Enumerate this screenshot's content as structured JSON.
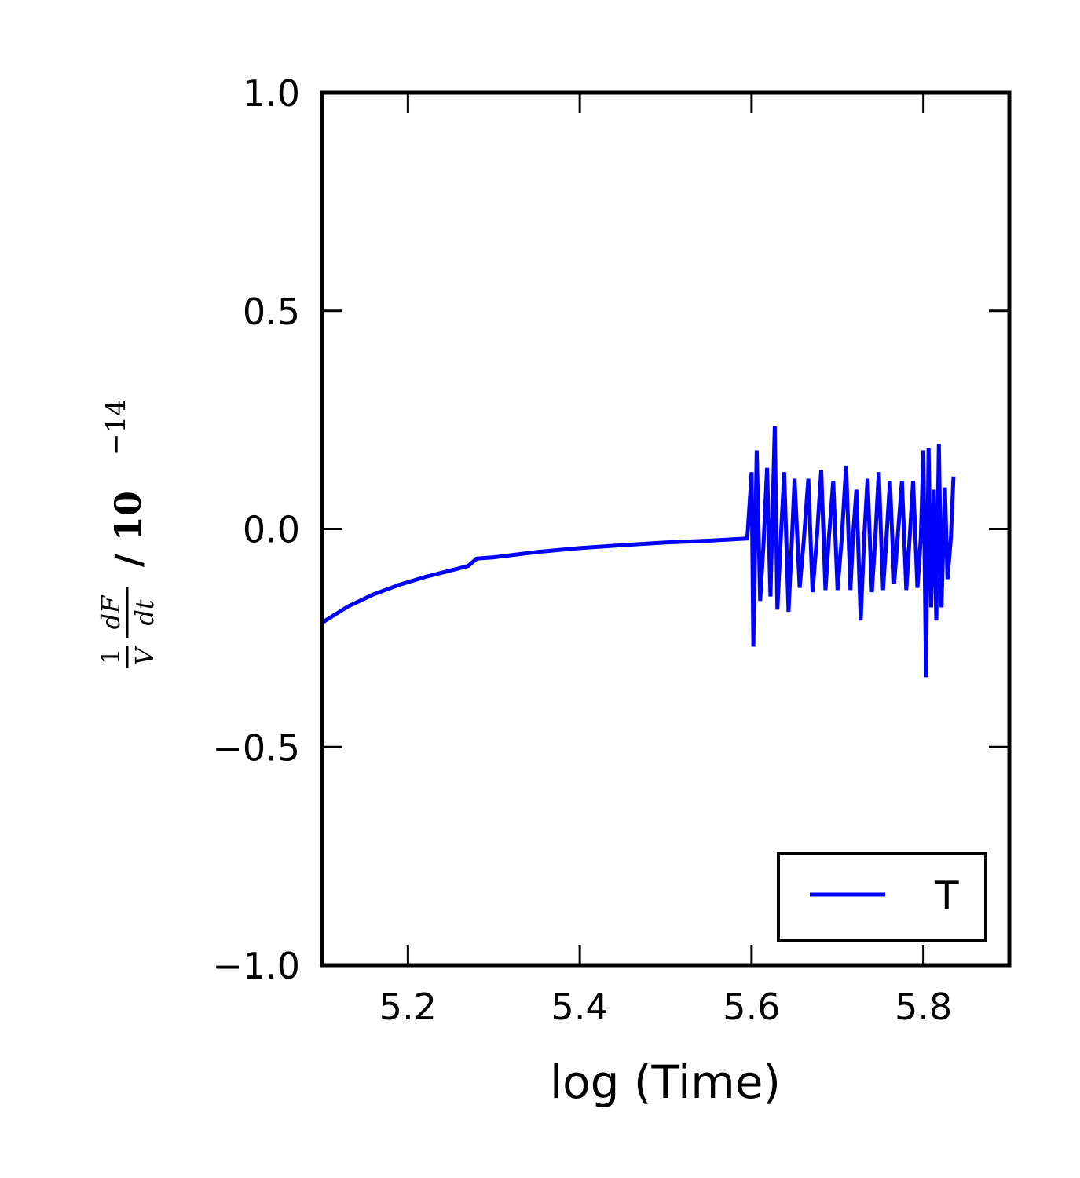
{
  "chart_data": {
    "type": "line",
    "xlabel": "log (Time)",
    "ylabel": {
      "fraction_numerator": "1",
      "fraction_denominator": "V",
      "derivative_numerator": "dF",
      "derivative_denominator": "dt",
      "scale_text": "/ 10",
      "scale_exponent": "−14"
    },
    "xlim": [
      5.1,
      5.9
    ],
    "ylim": [
      -1.0,
      1.0
    ],
    "xticks": [
      {
        "value": 5.2,
        "label": "5.2"
      },
      {
        "value": 5.4,
        "label": "5.4"
      },
      {
        "value": 5.6,
        "label": "5.6"
      },
      {
        "value": 5.8,
        "label": "5.8"
      }
    ],
    "yticks": [
      {
        "value": -1.0,
        "label": "−1.0"
      },
      {
        "value": -0.5,
        "label": "−0.5"
      },
      {
        "value": 0.0,
        "label": "0.0"
      },
      {
        "value": 0.5,
        "label": "0.5"
      },
      {
        "value": 1.0,
        "label": "1.0"
      }
    ],
    "grid": false,
    "legend_position": "lower-right",
    "series": [
      {
        "name": "T",
        "color": "#0000ff",
        "points": [
          [
            5.1,
            -0.215
          ],
          [
            5.13,
            -0.178
          ],
          [
            5.16,
            -0.15
          ],
          [
            5.19,
            -0.128
          ],
          [
            5.22,
            -0.11
          ],
          [
            5.25,
            -0.095
          ],
          [
            5.27,
            -0.085
          ],
          [
            5.28,
            -0.068
          ],
          [
            5.3,
            -0.065
          ],
          [
            5.35,
            -0.053
          ],
          [
            5.4,
            -0.044
          ],
          [
            5.45,
            -0.037
          ],
          [
            5.5,
            -0.031
          ],
          [
            5.55,
            -0.027
          ],
          [
            5.595,
            -0.022
          ],
          [
            5.6,
            0.13
          ],
          [
            5.602,
            -0.27
          ],
          [
            5.606,
            0.18
          ],
          [
            5.61,
            -0.165
          ],
          [
            5.614,
            -0.03
          ],
          [
            5.618,
            0.14
          ],
          [
            5.622,
            -0.155
          ],
          [
            5.627,
            0.235
          ],
          [
            5.63,
            -0.185
          ],
          [
            5.634,
            -0.02
          ],
          [
            5.638,
            0.13
          ],
          [
            5.643,
            -0.19
          ],
          [
            5.647,
            -0.02
          ],
          [
            5.65,
            0.115
          ],
          [
            5.656,
            -0.135
          ],
          [
            5.661,
            -0.02
          ],
          [
            5.666,
            0.115
          ],
          [
            5.671,
            -0.145
          ],
          [
            5.676,
            -0.02
          ],
          [
            5.681,
            0.135
          ],
          [
            5.686,
            -0.14
          ],
          [
            5.69,
            -0.02
          ],
          [
            5.695,
            0.11
          ],
          [
            5.7,
            -0.14
          ],
          [
            5.705,
            -0.02
          ],
          [
            5.71,
            0.145
          ],
          [
            5.715,
            -0.14
          ],
          [
            5.718,
            -0.02
          ],
          [
            5.722,
            0.09
          ],
          [
            5.727,
            -0.21
          ],
          [
            5.731,
            -0.02
          ],
          [
            5.735,
            0.115
          ],
          [
            5.74,
            -0.145
          ],
          [
            5.744,
            -0.02
          ],
          [
            5.748,
            0.13
          ],
          [
            5.753,
            -0.14
          ],
          [
            5.757,
            -0.02
          ],
          [
            5.761,
            0.11
          ],
          [
            5.766,
            -0.125
          ],
          [
            5.77,
            -0.02
          ],
          [
            5.775,
            0.11
          ],
          [
            5.78,
            -0.14
          ],
          [
            5.784,
            -0.02
          ],
          [
            5.788,
            0.11
          ],
          [
            5.793,
            -0.135
          ],
          [
            5.797,
            -0.02
          ],
          [
            5.8,
            0.18
          ],
          [
            5.803,
            -0.34
          ],
          [
            5.806,
            0.185
          ],
          [
            5.809,
            -0.18
          ],
          [
            5.812,
            0.09
          ],
          [
            5.815,
            -0.21
          ],
          [
            5.818,
            0.195
          ],
          [
            5.821,
            -0.18
          ],
          [
            5.825,
            0.095
          ],
          [
            5.828,
            -0.115
          ],
          [
            5.832,
            -0.02
          ],
          [
            5.835,
            0.12
          ]
        ]
      }
    ]
  }
}
